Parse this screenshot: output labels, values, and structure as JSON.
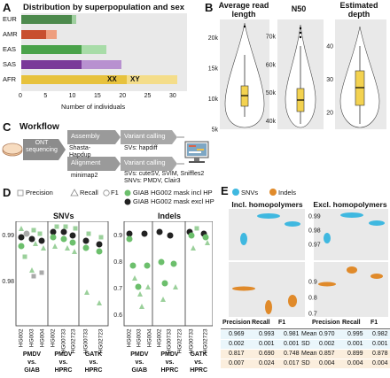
{
  "panels": {
    "A": {
      "letter": "A",
      "title": "Distribution by superpopulation and sex",
      "xlabel": "Number of individuals",
      "xticks": [
        "0",
        "5",
        "10",
        "15",
        "20",
        "25",
        "30"
      ],
      "xx_label": "XX",
      "xy_label": "XY"
    },
    "B": {
      "letter": "B",
      "titles": [
        "Average read length",
        "N50",
        "Estimated depth"
      ]
    },
    "C": {
      "letter": "C",
      "title": "Workflow",
      "ont_label": "ONT sequencing",
      "assembly_label": "Assembly",
      "assembly_tools": "Shasta-Hapdup",
      "variant_label_1": "Variant calling",
      "svs_1": "SVs: hapdiff",
      "alignment_label": "Alignment",
      "alignment_tool": "minimap2",
      "variant_label_2": "Variant calling",
      "svs_2": "SVs: cuteSV, SVIM, Sniffles2",
      "snvs_2": "SNVs: PMDV, Clair3"
    },
    "D": {
      "letter": "D",
      "legend": {
        "precision": "Precision",
        "recall": "Recall",
        "f1": "F1",
        "incl": "GIAB HG002 mask incl HP",
        "excl": "GIAB HG002 mask excl HP"
      },
      "snvs_title": "SNVs",
      "indels_title": "Indels",
      "snv_yticks": [
        "0.99",
        "0.98"
      ],
      "indel_yticks": [
        "0.9",
        "0.8",
        "0.7",
        "0.6"
      ],
      "groups": [
        {
          "samples": [
            "HG002",
            "HG003",
            "HG004"
          ],
          "label1": "PMDV",
          "label2": "vs.",
          "label3": "GIAB"
        },
        {
          "samples": [
            "HG002",
            "HG00733",
            "HG02723"
          ],
          "label1": "PMDV",
          "label2": "vs.",
          "label3": "HPRC"
        },
        {
          "samples": [
            "HG00733",
            "HG02723"
          ],
          "label1": "GATK",
          "label2": "vs.",
          "label3": "HPRC"
        }
      ]
    },
    "E": {
      "letter": "E",
      "legend_snvs": "SNVs",
      "legend_indels": "Indels",
      "incl_title": "Incl. homopolymers",
      "excl_title": "Excl. homopolymers",
      "yticks": [
        "0.99",
        "0.98",
        "0.97",
        "0.9",
        "0.8",
        "0.7"
      ],
      "metric_labels": [
        "Precision",
        "Recall",
        "F1"
      ],
      "table": {
        "incl": [
          [
            "0.969",
            "0.993",
            "0.981"
          ],
          [
            "0.002",
            "0.001",
            "0.001"
          ],
          [
            "0.817",
            "0.690",
            "0.748"
          ],
          [
            "0.007",
            "0.024",
            "0.017"
          ]
        ],
        "row_labels": [
          "Mean",
          "SD",
          "Mean",
          "SD"
        ],
        "excl": [
          [
            "0.970",
            "0.995",
            "0.982"
          ],
          [
            "0.002",
            "0.001",
            "0.001"
          ],
          [
            "0.857",
            "0.899",
            "0.878"
          ],
          [
            "0.004",
            "0.004",
            "0.004"
          ]
        ]
      }
    }
  },
  "chart_data": [
    {
      "type": "bar",
      "title": "Distribution by superpopulation and sex",
      "xlabel": "Number of individuals",
      "categories": [
        "EUR",
        "AMR",
        "EAS",
        "SAS",
        "AFR"
      ],
      "series": [
        {
          "name": "XX",
          "values": [
            10,
            5,
            12,
            12,
            21
          ]
        },
        {
          "name": "XY",
          "values": [
            1,
            2,
            5,
            8,
            10
          ]
        }
      ],
      "xlim": [
        0,
        33
      ]
    },
    {
      "type": "violin",
      "title": "Average read length",
      "yticks": [
        "5k",
        "10k",
        "15k",
        "20k"
      ],
      "ylim": [
        5000,
        23000
      ]
    },
    {
      "type": "violin",
      "title": "N50",
      "yticks": [
        "40k",
        "50k",
        "60k",
        "70k"
      ],
      "ylim": [
        37000,
        76000
      ]
    },
    {
      "type": "violin",
      "title": "Estimated depth",
      "yticks": [
        "20",
        "30",
        "40"
      ],
      "ylim": [
        15,
        48
      ]
    }
  ]
}
